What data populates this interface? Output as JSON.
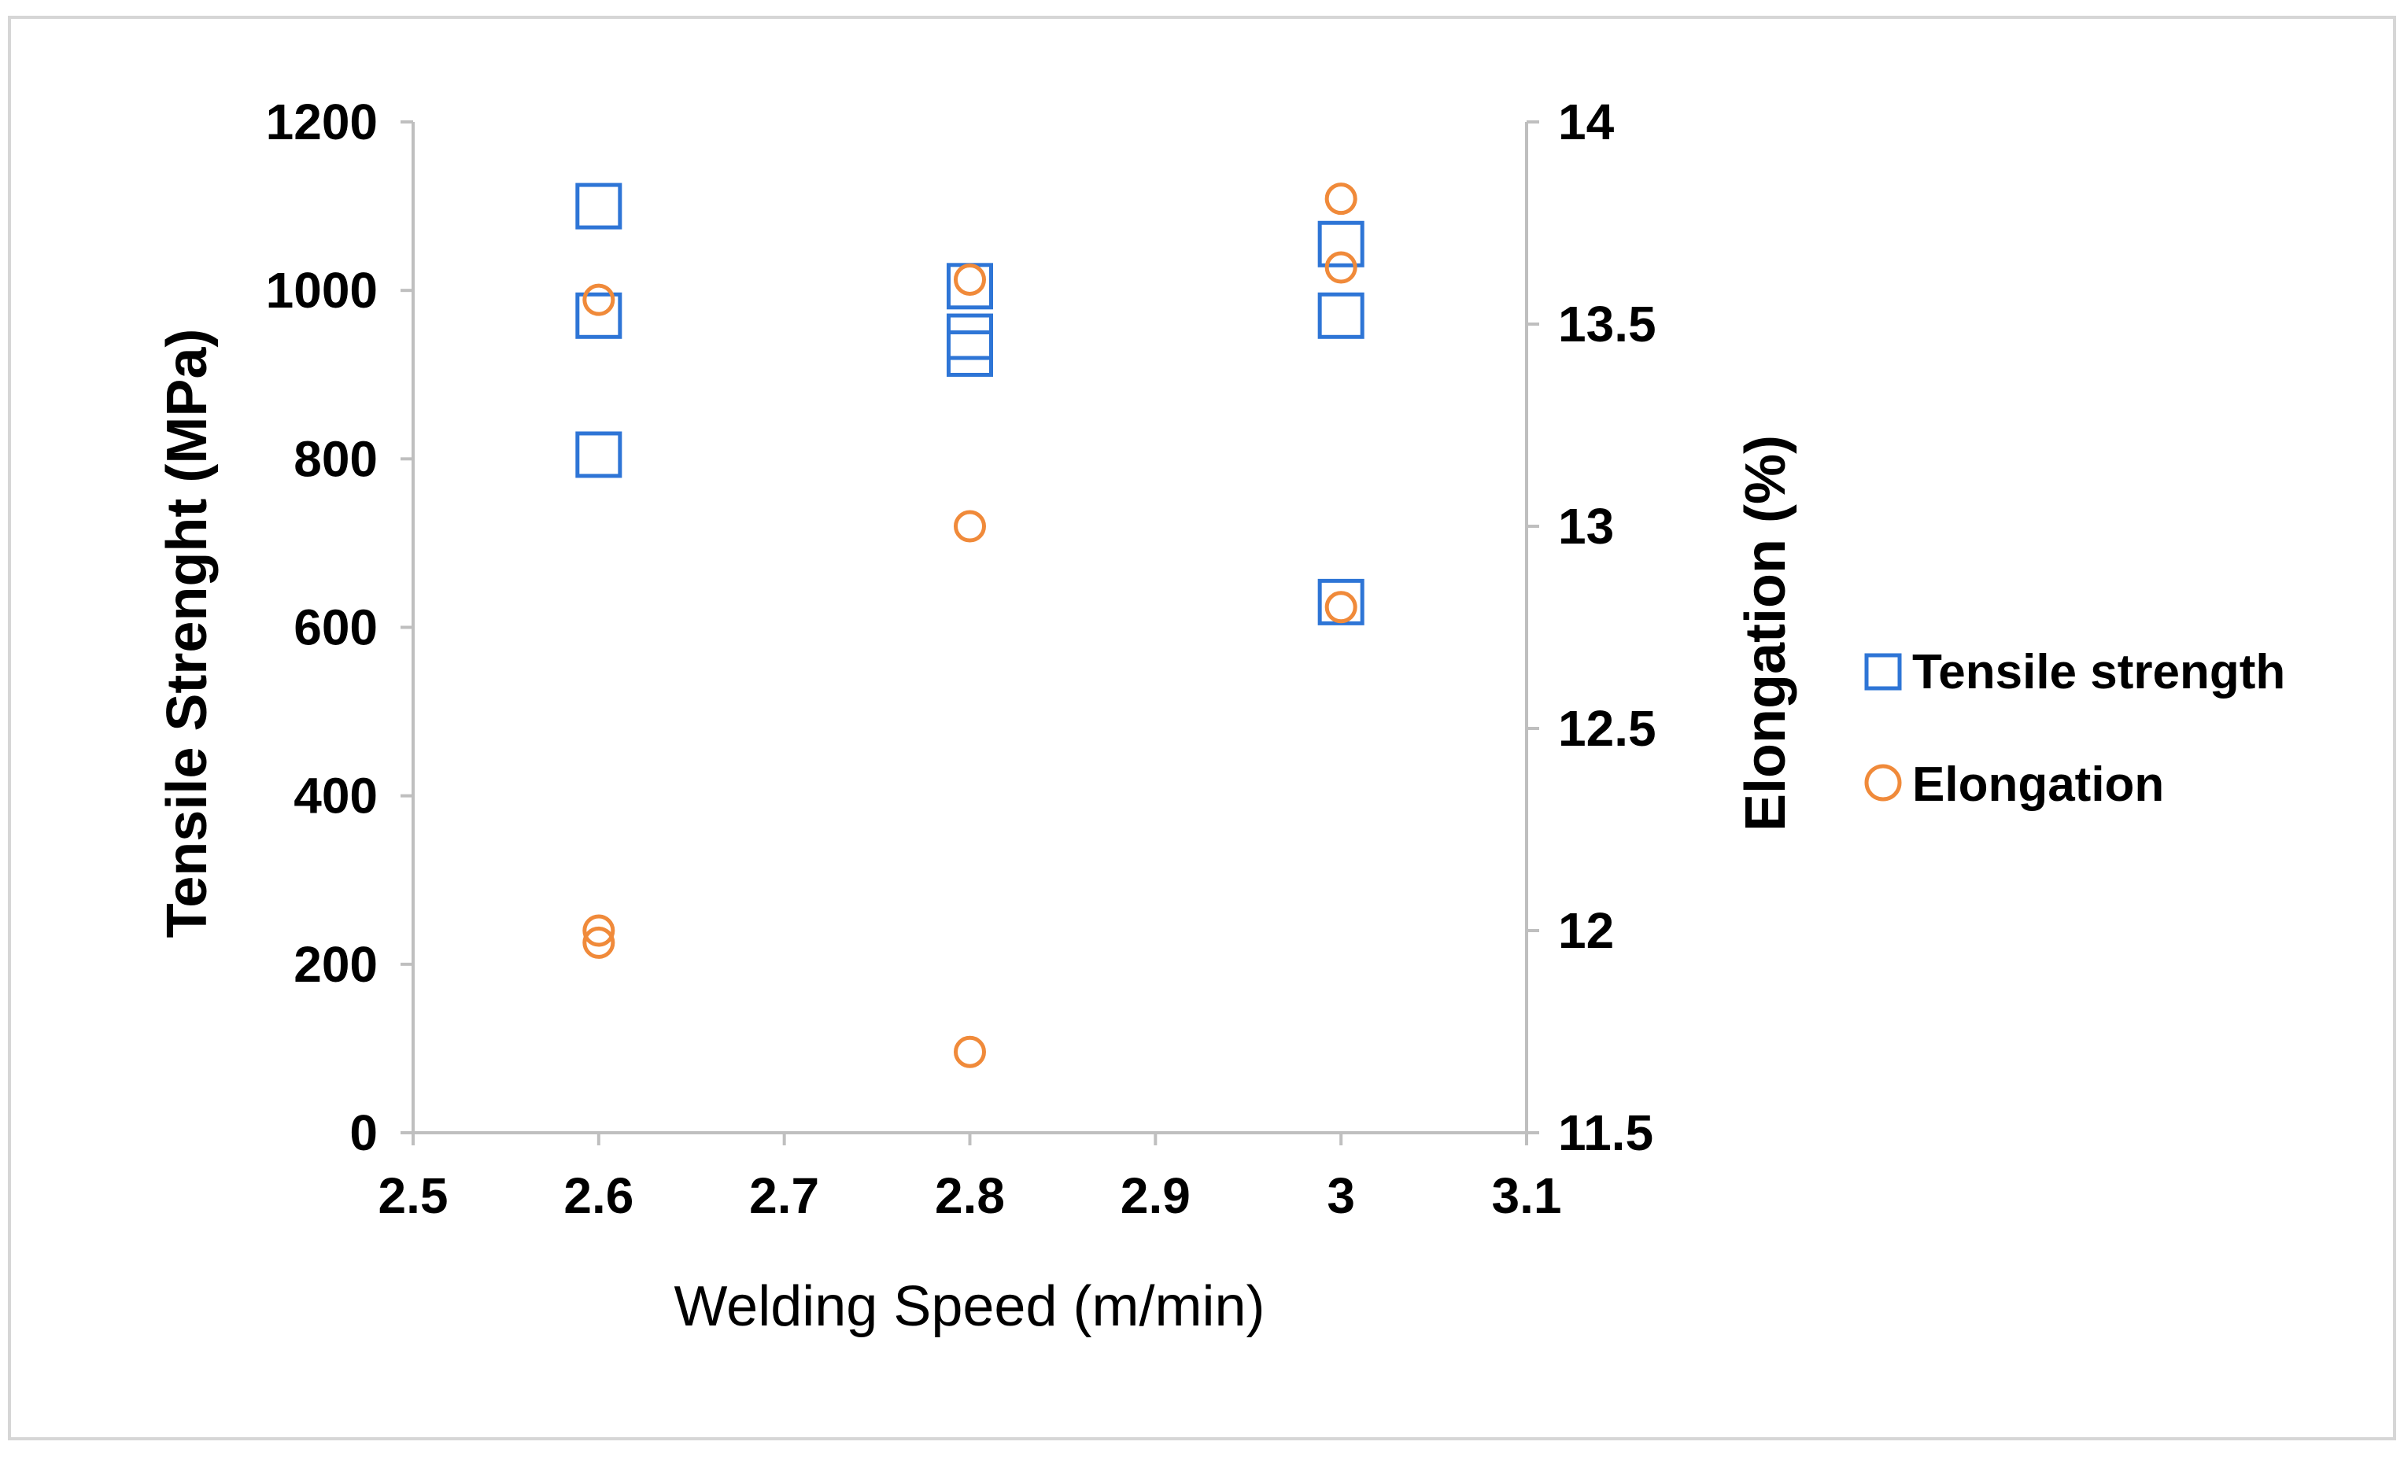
{
  "chart_data": {
    "type": "scatter",
    "xlabel": "Welding Speed (m/min)",
    "ylabel": "Tensile Strenght (MPa)",
    "y2label": "Elongation (%)",
    "xlim": [
      2.5,
      3.1
    ],
    "ylim": [
      0,
      1200
    ],
    "y2lim": [
      11.5,
      14
    ],
    "x_ticks": [
      "2.5",
      "2.6",
      "2.7",
      "2.8",
      "2.9",
      "3",
      "3.1"
    ],
    "y_ticks": [
      "0",
      "200",
      "400",
      "600",
      "800",
      "1000",
      "1200"
    ],
    "y2_ticks": [
      "11.5",
      "12",
      "12.5",
      "13",
      "13.5",
      "14"
    ],
    "grid": false,
    "legend_position": "right",
    "series": [
      {
        "name": "Tensile strength",
        "axis": "left",
        "marker": "square",
        "color": "#2E75D6",
        "x": [
          2.6,
          2.6,
          2.6,
          2.8,
          2.8,
          2.8,
          3.0,
          3.0,
          3.0
        ],
        "y": [
          1100,
          970,
          805,
          1005,
          945,
          925,
          1055,
          970,
          630
        ]
      },
      {
        "name": "Elongation",
        "axis": "right",
        "marker": "circle",
        "color": "#F08A3A",
        "x": [
          2.6,
          2.6,
          2.6,
          2.8,
          2.8,
          2.8,
          3.0,
          3.0,
          3.0
        ],
        "y": [
          13.56,
          12.0,
          11.97,
          13.61,
          13.0,
          11.7,
          13.81,
          13.64,
          12.8
        ]
      }
    ]
  }
}
